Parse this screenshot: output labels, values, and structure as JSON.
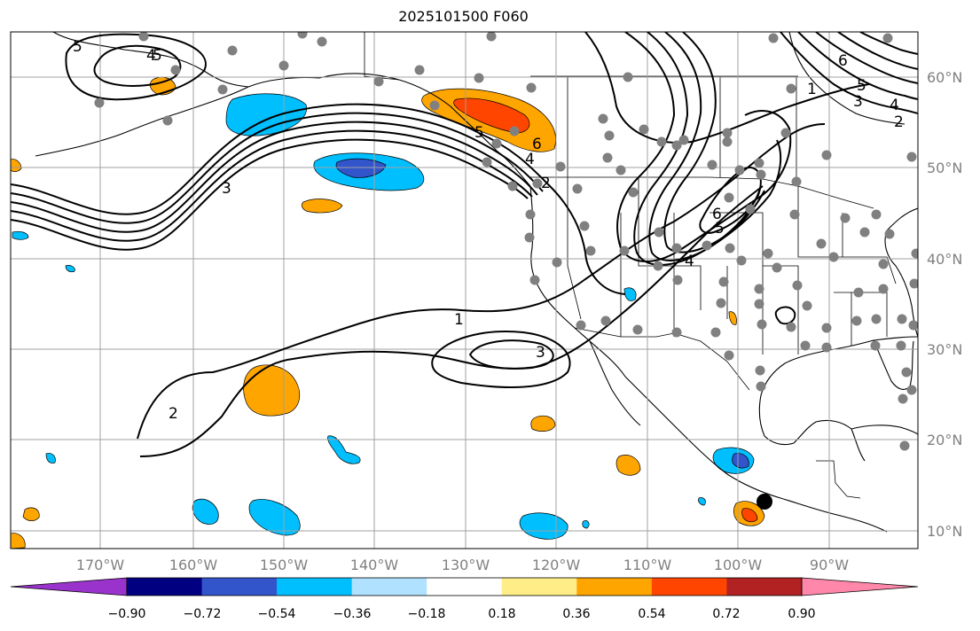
{
  "title": "2025101500 F060",
  "lat_labels": [
    "60°N",
    "50°N",
    "40°N",
    "30°N",
    "20°N",
    "10°N"
  ],
  "lon_labels": [
    "170°W",
    "160°W",
    "150°W",
    "140°W",
    "130°W",
    "120°W",
    "110°W",
    "100°W",
    "90°W"
  ],
  "colorbar": {
    "ticks": [
      "−0.90",
      "−0.72",
      "−0.54",
      "−0.36",
      "−0.18",
      "0.18",
      "0.36",
      "0.54",
      "0.72",
      "0.90"
    ],
    "colors": [
      "#9933cc",
      "#000080",
      "#3355cc",
      "#00bfff",
      "#b0e2ff",
      "#ffffff",
      "#ffee88",
      "#ffa500",
      "#ff4500",
      "#b22222",
      "#ff88aa"
    ]
  },
  "contour_labels": [
    "5",
    "4",
    "3",
    "1",
    "6",
    "5",
    "4",
    "2",
    "6",
    "5",
    "4",
    "1",
    "3",
    "2",
    "6",
    "5",
    "4",
    "1",
    "3",
    "2"
  ],
  "colors": {
    "land_outline": "#000000",
    "gridline": "#a0a0a0",
    "station_dot": "#808080",
    "highlight_dot": "#000000"
  }
}
